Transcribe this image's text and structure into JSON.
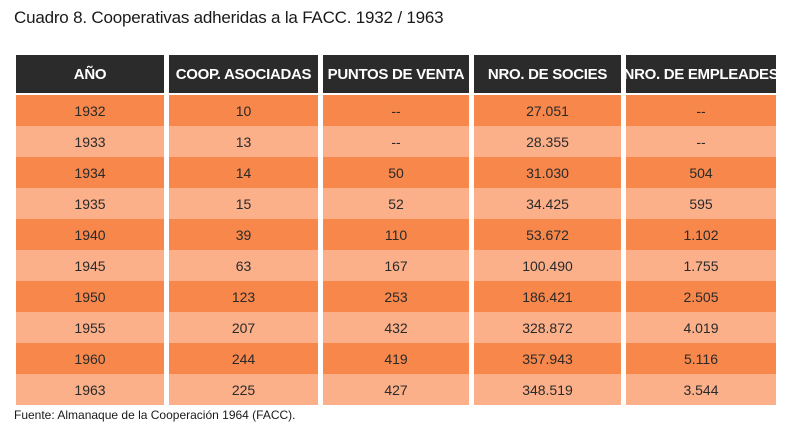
{
  "title": "Cuadro 8. Cooperativas adheridas a la FACC. 1932 / 1963",
  "table": {
    "headers": [
      "AÑO",
      "COOP.  ASOCIADAS",
      "PUNTOS DE VENTA",
      "NRO. DE SOCIES",
      "NRO. DE EMPLEADES"
    ],
    "rows": [
      [
        "1932",
        "10",
        "--",
        "27.051",
        "--"
      ],
      [
        "1933",
        "13",
        "--",
        "28.355",
        "--"
      ],
      [
        "1934",
        "14",
        "50",
        "31.030",
        "504"
      ],
      [
        "1935",
        "15",
        "52",
        "34.425",
        "595"
      ],
      [
        "1940",
        "39",
        "110",
        "53.672",
        "1.102"
      ],
      [
        "1945",
        "63",
        "167",
        "100.490",
        "1.755"
      ],
      [
        "1950",
        "123",
        "253",
        "186.421",
        "2.505"
      ],
      [
        "1955",
        "207",
        "432",
        "328.872",
        "4.019"
      ],
      [
        "1960",
        "244",
        "419",
        "357.943",
        "5.116"
      ],
      [
        "1963",
        "225",
        "427",
        "348.519",
        "3.544"
      ]
    ]
  },
  "source": "Fuente: Almanaque de la Cooperación 1964 (FACC).",
  "colors": {
    "header_bg": "#2b2b2b",
    "row_dark": "#f7874a",
    "row_light": "#fcb08a"
  }
}
